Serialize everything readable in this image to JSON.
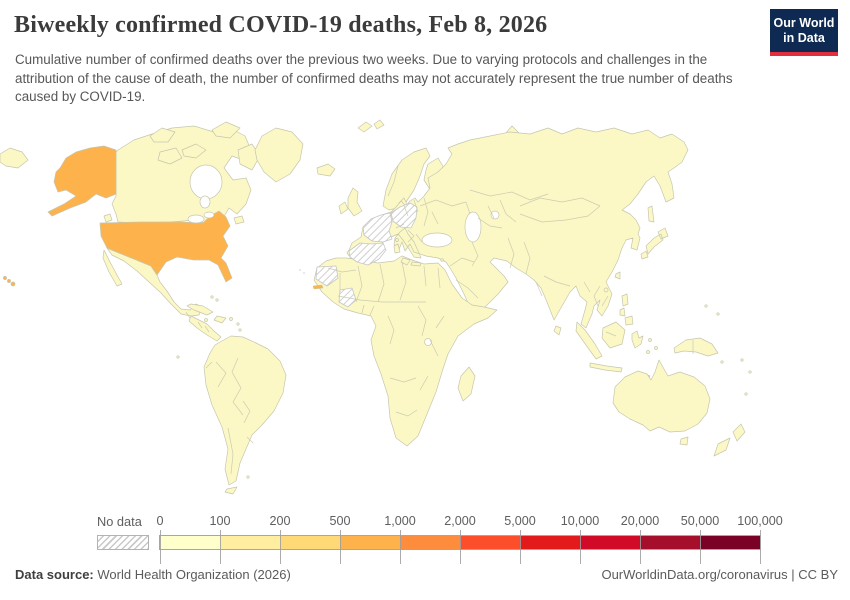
{
  "header": {
    "title": "Biweekly confirmed COVID-19 deaths, Feb 8, 2026",
    "subtitle": "Cumulative number of confirmed deaths over the previous two weeks. Due to varying protocols and challenges in the attribution of the cause of death, the number of confirmed deaths may not accurately represent the true number of deaths caused by COVID-19.",
    "logo": {
      "line1": "Our World",
      "line2": "in Data",
      "bg_color": "#0f2a52",
      "accent_color": "#e0303d"
    }
  },
  "legend": {
    "no_data_label": "No data",
    "ticks": [
      "0",
      "100",
      "200",
      "500",
      "1,000",
      "2,000",
      "5,000",
      "10,000",
      "20,000",
      "50,000",
      "100,000"
    ],
    "bin_colors": [
      "#ffffcc",
      "#ffeda0",
      "#fed976",
      "#feb24c",
      "#fd8d3c",
      "#fc4e2a",
      "#e31a1c",
      "#d10b27",
      "#a50f2b",
      "#7a0226"
    ]
  },
  "map": {
    "colors": {
      "land": "#fbf8c5",
      "united_states": "#feb24c",
      "gambia": "#feb24c",
      "border": "#c6c6ae",
      "water": "#ffffff",
      "hatch_line": "#c4c4c4",
      "no_data_stroke": "#c6c6c6",
      "speck": "#e8e8e8"
    }
  },
  "footer": {
    "source_label": "Data source:",
    "source_text": "World Health Organization (2026)",
    "credit": "OurWorldinData.org/coronavirus",
    "divider": "|",
    "license": "CC BY"
  },
  "chart_data": {
    "type": "heatmap",
    "subtype": "choropleth-world-map",
    "title": "Biweekly confirmed COVID-19 deaths",
    "date": "Feb 8, 2026",
    "unit": "confirmed deaths over the previous two weeks",
    "legend_position": "bottom",
    "bins": {
      "edges": [
        0,
        100,
        200,
        500,
        1000,
        2000,
        5000,
        10000,
        20000,
        50000,
        100000
      ],
      "colors": [
        "#ffffcc",
        "#ffeda0",
        "#fed976",
        "#feb24c",
        "#fd8d3c",
        "#fc4e2a",
        "#e31a1c",
        "#d10b27",
        "#a50f2b",
        "#7a0226"
      ],
      "no_data_pattern": "gray-diagonal-hatch"
    },
    "regions": [
      {
        "name": "United States",
        "value_bin": "500–1,000"
      },
      {
        "name": "France",
        "value": "no data"
      },
      {
        "name": "Germany",
        "value": "no data"
      },
      {
        "name": "Spain",
        "value": "no data"
      },
      {
        "name": "Portugal",
        "value": "no data"
      },
      {
        "name": "Western Sahara",
        "value": "no data"
      },
      {
        "name": "Côte d'Ivoire",
        "value": "no data"
      },
      {
        "name": "Rest of world",
        "value_bin": "0–100"
      }
    ]
  }
}
